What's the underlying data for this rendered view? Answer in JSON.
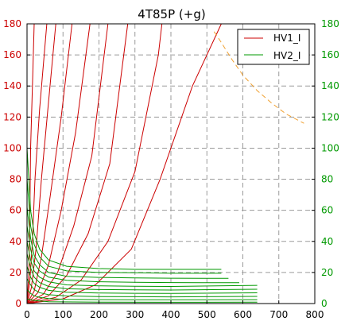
{
  "chart_data": {
    "type": "line",
    "title": "4T85P (+g)",
    "xlim": [
      0,
      800
    ],
    "ylim": [
      0,
      180
    ],
    "x_ticks": [
      0,
      100,
      200,
      300,
      400,
      500,
      600,
      700,
      800
    ],
    "y_ticks_left": [
      0,
      20,
      40,
      60,
      80,
      100,
      120,
      140,
      160,
      180
    ],
    "y_ticks_right": [
      0,
      20,
      40,
      60,
      80,
      100,
      120,
      140,
      160,
      180
    ],
    "grid": true,
    "legend": {
      "placement": "top-right",
      "entries": [
        "HV1_I",
        "HV2_I"
      ]
    },
    "colors": {
      "hv1": "#cc0000",
      "hv2": "#009900",
      "left_axis": "#cc0000",
      "right_axis": "#009900",
      "dissipation": "#f0a030",
      "grid": "#9a9a9a"
    },
    "series": [
      {
        "name": "HV1_I",
        "color": "#cc0000",
        "curves": [
          [
            [
              0,
              0
            ],
            [
              5,
              20
            ],
            [
              8,
              60
            ],
            [
              10,
              100
            ],
            [
              15,
              140
            ],
            [
              20,
              180
            ]
          ],
          [
            [
              0,
              0
            ],
            [
              8,
              15
            ],
            [
              15,
              40
            ],
            [
              22,
              80
            ],
            [
              35,
              125
            ],
            [
              55,
              180
            ]
          ],
          [
            [
              0,
              0
            ],
            [
              12,
              10
            ],
            [
              25,
              35
            ],
            [
              40,
              80
            ],
            [
              60,
              130
            ],
            [
              80,
              180
            ]
          ],
          [
            [
              0,
              0
            ],
            [
              20,
              8
            ],
            [
              40,
              30
            ],
            [
              65,
              70
            ],
            [
              95,
              120
            ],
            [
              125,
              180
            ]
          ],
          [
            [
              0,
              0
            ],
            [
              30,
              7
            ],
            [
              60,
              25
            ],
            [
              95,
              60
            ],
            [
              135,
              110
            ],
            [
              175,
              180
            ]
          ],
          [
            [
              0,
              0
            ],
            [
              45,
              6
            ],
            [
              85,
              20
            ],
            [
              130,
              50
            ],
            [
              180,
              95
            ],
            [
              225,
              180
            ]
          ],
          [
            [
              0,
              0
            ],
            [
              60,
              5
            ],
            [
              110,
              18
            ],
            [
              170,
              45
            ],
            [
              230,
              90
            ],
            [
              280,
              180
            ]
          ],
          [
            [
              0,
              0
            ],
            [
              80,
              4
            ],
            [
              150,
              15
            ],
            [
              225,
              40
            ],
            [
              300,
              85
            ],
            [
              365,
              160
            ],
            [
              375,
              180
            ]
          ],
          [
            [
              0,
              0
            ],
            [
              100,
              3
            ],
            [
              190,
              12
            ],
            [
              290,
              35
            ],
            [
              370,
              80
            ],
            [
              460,
              140
            ],
            [
              540,
              180
            ]
          ]
        ]
      },
      {
        "name": "HV2_I",
        "color": "#009900",
        "curves": [
          [
            [
              0,
              100
            ],
            [
              10,
              60
            ],
            [
              20,
              45
            ],
            [
              35,
              35
            ],
            [
              60,
              28
            ],
            [
              110,
              24
            ],
            [
              200,
              22.5
            ],
            [
              300,
              22
            ],
            [
              400,
              22
            ],
            [
              540,
              22
            ]
          ],
          [
            [
              0,
              80
            ],
            [
              10,
              50
            ],
            [
              20,
              38
            ],
            [
              35,
              30
            ],
            [
              60,
              24
            ],
            [
              110,
              21
            ],
            [
              200,
              20
            ],
            [
              300,
              19.8
            ],
            [
              400,
              19.5
            ],
            [
              540,
              19.5
            ]
          ],
          [
            [
              0,
              62
            ],
            [
              10,
              42
            ],
            [
              20,
              31
            ],
            [
              35,
              25
            ],
            [
              60,
              20
            ],
            [
              110,
              17.5
            ],
            [
              200,
              16.8
            ],
            [
              300,
              16.5
            ],
            [
              400,
              16.3
            ],
            [
              560,
              16.2
            ]
          ],
          [
            [
              0,
              50
            ],
            [
              10,
              35
            ],
            [
              20,
              26
            ],
            [
              35,
              21
            ],
            [
              60,
              17
            ],
            [
              110,
              15
            ],
            [
              200,
              14
            ],
            [
              300,
              13.7
            ],
            [
              400,
              13.5
            ],
            [
              590,
              13.4
            ]
          ],
          [
            [
              0,
              40
            ],
            [
              10,
              28
            ],
            [
              20,
              21
            ],
            [
              35,
              17
            ],
            [
              60,
              14
            ],
            [
              110,
              12
            ],
            [
              200,
              11.4
            ],
            [
              300,
              11.1
            ],
            [
              400,
              11
            ],
            [
              640,
              11.7
            ]
          ],
          [
            [
              0,
              32
            ],
            [
              10,
              23
            ],
            [
              20,
              17
            ],
            [
              35,
              13.5
            ],
            [
              60,
              11
            ],
            [
              110,
              9.5
            ],
            [
              200,
              9
            ],
            [
              300,
              8.8
            ],
            [
              400,
              8.7
            ],
            [
              640,
              9.2
            ]
          ],
          [
            [
              0,
              24
            ],
            [
              10,
              17
            ],
            [
              20,
              13
            ],
            [
              35,
              10.5
            ],
            [
              60,
              8.5
            ],
            [
              110,
              7.3
            ],
            [
              200,
              6.8
            ],
            [
              300,
              6.6
            ],
            [
              400,
              6.5
            ],
            [
              640,
              6.9
            ]
          ],
          [
            [
              0,
              16
            ],
            [
              10,
              12
            ],
            [
              20,
              9
            ],
            [
              35,
              7
            ],
            [
              60,
              5.7
            ],
            [
              110,
              4.9
            ],
            [
              200,
              4.5
            ],
            [
              300,
              4.4
            ],
            [
              400,
              4.3
            ],
            [
              640,
              4.6
            ]
          ],
          [
            [
              0,
              9
            ],
            [
              10,
              6.5
            ],
            [
              20,
              5
            ],
            [
              35,
              4
            ],
            [
              60,
              3.2
            ],
            [
              110,
              2.7
            ],
            [
              200,
              2.5
            ],
            [
              300,
              2.4
            ],
            [
              400,
              2.4
            ],
            [
              640,
              2.5
            ]
          ],
          [
            [
              0,
              3
            ],
            [
              20,
              2
            ],
            [
              60,
              1.2
            ],
            [
              200,
              0.9
            ],
            [
              400,
              0.8
            ],
            [
              640,
              0.9
            ]
          ]
        ]
      }
    ],
    "annotations": [
      {
        "type": "dissipation-curve",
        "style": "dashed",
        "color": "#f0a030",
        "points": [
          [
            520,
            175
          ],
          [
            540,
            168
          ],
          [
            570,
            157
          ],
          [
            600,
            147
          ],
          [
            640,
            137
          ],
          [
            680,
            129
          ],
          [
            720,
            122
          ],
          [
            770,
            116
          ]
        ]
      }
    ]
  }
}
